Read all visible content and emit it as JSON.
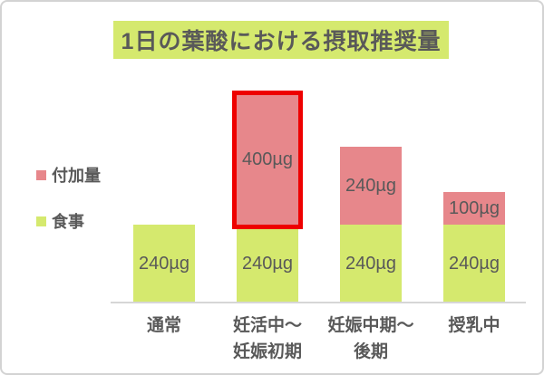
{
  "header": {
    "title": "1日の葉酸における摂取推奨量"
  },
  "legend": {
    "position": "left",
    "items": [
      {
        "key": "additional",
        "label": "付加量",
        "color": "#e7878b"
      },
      {
        "key": "meal",
        "label": "食事",
        "color": "#d5e96e"
      }
    ]
  },
  "chart_data": {
    "type": "bar",
    "stacked": true,
    "orientation": "vertical",
    "title": "1日の葉酸における摂取推奨量",
    "unit": "µg",
    "categories": [
      [
        "通常"
      ],
      [
        "妊活中〜",
        "妊娠初期"
      ],
      [
        "妊娠中期〜",
        "後期"
      ],
      [
        "授乳中"
      ]
    ],
    "series": [
      {
        "key": "meal",
        "name": "食事",
        "color": "#d5e96e",
        "values": [
          240,
          240,
          240,
          240
        ]
      },
      {
        "key": "additional",
        "name": "付加量",
        "color": "#e7878b",
        "values": [
          null,
          400,
          240,
          100
        ]
      }
    ],
    "totals": [
      240,
      640,
      480,
      340
    ],
    "value_label_format": "{value}µg",
    "highlight": {
      "series_key": "additional",
      "category_index": 1,
      "border_color": "#ee0000"
    },
    "axes": {
      "y_axis_visible": false,
      "gridlines": false,
      "x_baseline_visible": true
    },
    "legend_position": "left"
  },
  "colors": {
    "meal_green": "#d5e96e",
    "additional_pink": "#e7878b",
    "highlight_red": "#ee0000",
    "text_gray": "#595959",
    "baseline_gray": "#d6d6d6",
    "frame_border": "#d3d3d3",
    "background": "#ffffff"
  }
}
